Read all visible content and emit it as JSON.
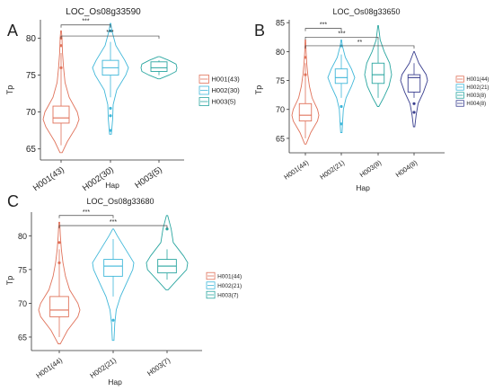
{
  "panels": [
    {
      "letter": "A",
      "title": "LOC_Os08g33590",
      "xlabel": "Hap",
      "ylabel": "Tp",
      "yticks": [
        65,
        70,
        75,
        80
      ],
      "ylim": [
        63.5,
        82.5
      ],
      "categories": [
        "H001(43)",
        "H002(30)",
        "H003(5)"
      ],
      "legend": [
        "H001(43)",
        "H002(30)",
        "H003(5)"
      ],
      "colors": [
        "#E0725A",
        "#3FB7D9",
        "#2AA6A0"
      ],
      "violins": [
        {
          "min": 64.5,
          "max": 81.0,
          "q1": 68.5,
          "median": 69.2,
          "q3": 70.8,
          "wlo": 65.5,
          "whi": 78.0,
          "outliers": [
            76,
            79,
            80
          ],
          "density": [
            [
              64.5,
              0.06
            ],
            [
              66,
              0.35
            ],
            [
              68,
              0.85
            ],
            [
              69,
              1.0
            ],
            [
              70,
              0.9
            ],
            [
              72,
              0.45
            ],
            [
              74,
              0.22
            ],
            [
              76,
              0.14
            ],
            [
              78,
              0.08
            ],
            [
              80,
              0.05
            ],
            [
              81,
              0.02
            ]
          ]
        },
        {
          "min": 67.0,
          "max": 82.0,
          "q1": 75.0,
          "median": 76.0,
          "q3": 77.0,
          "wlo": 72.0,
          "whi": 79.5,
          "outliers": [
            67.5,
            69.5,
            70.5,
            81
          ],
          "density": [
            [
              67,
              0.05
            ],
            [
              69,
              0.12
            ],
            [
              71,
              0.15
            ],
            [
              73,
              0.35
            ],
            [
              75,
              0.85
            ],
            [
              76,
              1.0
            ],
            [
              77,
              0.8
            ],
            [
              79,
              0.3
            ],
            [
              81,
              0.08
            ],
            [
              82,
              0.02
            ]
          ]
        },
        {
          "min": 74.5,
          "max": 77.5,
          "q1": 75.5,
          "median": 76.0,
          "q3": 76.8,
          "wlo": 75.0,
          "whi": 77.0,
          "outliers": [],
          "density": [
            [
              74.5,
              0.05
            ],
            [
              75,
              0.55
            ],
            [
              75.5,
              0.95
            ],
            [
              76,
              1.0
            ],
            [
              76.5,
              0.95
            ],
            [
              77,
              0.55
            ],
            [
              77.5,
              0.05
            ]
          ]
        }
      ],
      "sig": [
        {
          "from": 0,
          "to": 1,
          "y": 81.8,
          "label": "***"
        },
        {
          "from": 0,
          "to": 2,
          "y": 80.3,
          "label": "***"
        }
      ]
    },
    {
      "letter": "B",
      "title": "LOC_Os08g33650",
      "xlabel": "Hap",
      "ylabel": "Tp",
      "yticks": [
        65,
        70,
        75,
        80,
        85
      ],
      "ylim": [
        62.5,
        85.5
      ],
      "categories": [
        "H001(44)",
        "H002(21)",
        "H003(8)",
        "H004(8)"
      ],
      "legend": [
        "H001(44)",
        "H002(21)",
        "H003(8)",
        "H004(8)"
      ],
      "colors": [
        "#E0725A",
        "#3FB7D9",
        "#2AA6A0",
        "#3A3F8F"
      ],
      "violins": [
        {
          "min": 64.0,
          "max": 82.0,
          "q1": 68.0,
          "median": 69.0,
          "q3": 71.0,
          "wlo": 65.0,
          "whi": 78.0,
          "outliers": [
            76,
            79
          ],
          "density": [
            [
              64,
              0.05
            ],
            [
              66,
              0.4
            ],
            [
              68,
              0.9
            ],
            [
              69,
              1.0
            ],
            [
              70,
              0.9
            ],
            [
              72,
              0.5
            ],
            [
              74,
              0.3
            ],
            [
              76,
              0.18
            ],
            [
              78,
              0.1
            ],
            [
              80,
              0.05
            ],
            [
              82,
              0.02
            ]
          ]
        },
        {
          "min": 66.0,
          "max": 82.0,
          "q1": 74.5,
          "median": 75.5,
          "q3": 77.0,
          "wlo": 72.0,
          "whi": 79.5,
          "outliers": [
            67.5,
            70.5,
            81
          ],
          "density": [
            [
              66,
              0.05
            ],
            [
              68,
              0.1
            ],
            [
              70,
              0.15
            ],
            [
              72,
              0.35
            ],
            [
              74,
              0.75
            ],
            [
              75.5,
              1.0
            ],
            [
              77,
              0.75
            ],
            [
              79,
              0.3
            ],
            [
              81,
              0.08
            ],
            [
              82,
              0.02
            ]
          ]
        },
        {
          "min": 70.5,
          "max": 84.5,
          "q1": 74.5,
          "median": 76.0,
          "q3": 78.0,
          "wlo": 72.0,
          "whi": 82.0,
          "outliers": [],
          "density": [
            [
              70.5,
              0.05
            ],
            [
              72,
              0.4
            ],
            [
              74,
              0.8
            ],
            [
              76,
              1.0
            ],
            [
              78,
              0.85
            ],
            [
              80,
              0.45
            ],
            [
              82,
              0.15
            ],
            [
              84.5,
              0.02
            ]
          ]
        },
        {
          "min": 67.0,
          "max": 80.0,
          "q1": 73.0,
          "median": 75.5,
          "q3": 76.0,
          "wlo": 72.0,
          "whi": 78.0,
          "outliers": [
            69.5,
            71
          ],
          "density": [
            [
              67,
              0.05
            ],
            [
              69,
              0.15
            ],
            [
              71,
              0.3
            ],
            [
              73,
              0.7
            ],
            [
              75,
              1.0
            ],
            [
              76,
              0.9
            ],
            [
              78,
              0.35
            ],
            [
              80,
              0.02
            ]
          ]
        }
      ],
      "sig": [
        {
          "from": 0,
          "to": 1,
          "y": 84.0,
          "label": "***"
        },
        {
          "from": 0,
          "to": 2,
          "y": 82.5,
          "label": "***"
        },
        {
          "from": 0,
          "to": 3,
          "y": 81.0,
          "label": "**"
        }
      ]
    },
    {
      "letter": "C",
      "title": "LOC_Os08g33680",
      "xlabel": "Hap",
      "ylabel": "Tp",
      "yticks": [
        65,
        70,
        75,
        80
      ],
      "ylim": [
        63,
        83.5
      ],
      "categories": [
        "H001(44)",
        "H002(21)",
        "H003(7)"
      ],
      "legend": [
        "H001(44)",
        "H002(21)",
        "H003(7)"
      ],
      "colors": [
        "#E0725A",
        "#3FB7D9",
        "#2AA6A0"
      ],
      "violins": [
        {
          "min": 64.0,
          "max": 82.0,
          "q1": 68.0,
          "median": 69.0,
          "q3": 71.0,
          "wlo": 65.0,
          "whi": 78.0,
          "outliers": [
            76,
            79
          ],
          "density": [
            [
              64,
              0.05
            ],
            [
              66,
              0.4
            ],
            [
              68,
              0.9
            ],
            [
              69,
              1.0
            ],
            [
              70,
              0.9
            ],
            [
              72,
              0.5
            ],
            [
              74,
              0.3
            ],
            [
              76,
              0.18
            ],
            [
              78,
              0.1
            ],
            [
              80,
              0.05
            ],
            [
              82,
              0.02
            ]
          ]
        },
        {
          "min": 64.5,
          "max": 81.0,
          "q1": 74.0,
          "median": 75.5,
          "q3": 76.5,
          "wlo": 71.0,
          "whi": 79.5,
          "outliers": [
            67.5
          ],
          "density": [
            [
              64.5,
              0.04
            ],
            [
              67,
              0.08
            ],
            [
              69,
              0.15
            ],
            [
              71,
              0.35
            ],
            [
              73,
              0.65
            ],
            [
              75,
              0.95
            ],
            [
              76,
              1.0
            ],
            [
              78,
              0.6
            ],
            [
              80,
              0.2
            ],
            [
              81,
              0.02
            ]
          ]
        },
        {
          "min": 72.0,
          "max": 83.0,
          "q1": 74.5,
          "median": 75.5,
          "q3": 76.5,
          "wlo": 73.5,
          "whi": 78.0,
          "outliers": [
            81
          ],
          "density": [
            [
              72,
              0.05
            ],
            [
              73.5,
              0.5
            ],
            [
              75,
              0.95
            ],
            [
              76,
              1.0
            ],
            [
              77,
              0.8
            ],
            [
              79,
              0.3
            ],
            [
              81,
              0.2
            ],
            [
              83,
              0.03
            ]
          ]
        }
      ],
      "sig": [
        {
          "from": 0,
          "to": 1,
          "y": 83.0,
          "label": "***"
        },
        {
          "from": 0,
          "to": 2,
          "y": 81.5,
          "label": "***"
        }
      ]
    }
  ],
  "chart_data": [
    {
      "type": "violin",
      "title": "LOC_Os08g33590",
      "xlabel": "Hap",
      "ylabel": "Tp",
      "categories": [
        "H001(43)",
        "H002(30)",
        "H003(5)"
      ],
      "medians": [
        69.2,
        76.0,
        76.0
      ],
      "significance": [
        {
          "pair": [
            "H001(43)",
            "H002(30)"
          ],
          "label": "***"
        },
        {
          "pair": [
            "H001(43)",
            "H003(5)"
          ],
          "label": "***"
        }
      ]
    },
    {
      "type": "violin",
      "title": "LOC_Os08g33650",
      "xlabel": "Hap",
      "ylabel": "Tp",
      "categories": [
        "H001(44)",
        "H002(21)",
        "H003(8)",
        "H004(8)"
      ],
      "medians": [
        69.0,
        75.5,
        76.0,
        75.5
      ],
      "significance": [
        {
          "pair": [
            "H001(44)",
            "H002(21)"
          ],
          "label": "***"
        },
        {
          "pair": [
            "H001(44)",
            "H003(8)"
          ],
          "label": "***"
        },
        {
          "pair": [
            "H001(44)",
            "H004(8)"
          ],
          "label": "**"
        }
      ]
    },
    {
      "type": "violin",
      "title": "LOC_Os08g33680",
      "xlabel": "Hap",
      "ylabel": "Tp",
      "categories": [
        "H001(44)",
        "H002(21)",
        "H003(7)"
      ],
      "medians": [
        69.0,
        75.5,
        75.5
      ],
      "significance": [
        {
          "pair": [
            "H001(44)",
            "H002(21)"
          ],
          "label": "***"
        },
        {
          "pair": [
            "H001(44)",
            "H003(7)"
          ],
          "label": "***"
        }
      ]
    }
  ]
}
